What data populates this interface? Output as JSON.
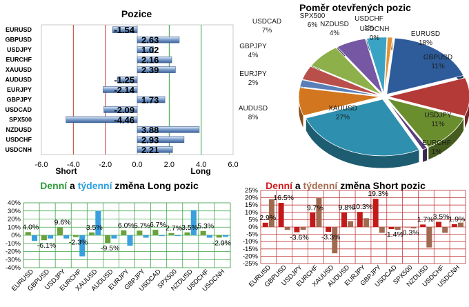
{
  "colors": {
    "bar_positive": "#6f93c4",
    "bar_negative": "#6f93c4",
    "grid_red": "#c0392b",
    "grid_green": "#2e9b3a",
    "long_daily": "#6aa23a",
    "long_weekly": "#3aa0dd",
    "short_daily": "#c21a1a",
    "short_weekly": "#a06a50"
  },
  "pozice": {
    "title": "Pozice",
    "xlabel_short": "Short",
    "xlabel_long": "Long",
    "chart_data": {
      "type": "bar",
      "orientation": "horizontal",
      "categories": [
        "EURUSD",
        "GBPUSD",
        "USDJPY",
        "EURCHF",
        "XAUUSD",
        "AUDUSD",
        "EURJPY",
        "GBPJPY",
        "USDCAD",
        "SPX500",
        "NZDUSD",
        "USDCHF",
        "USDCNH"
      ],
      "values": [
        -1.54,
        2.63,
        1.02,
        2.16,
        2.39,
        -1.25,
        -2.14,
        1.73,
        -2.09,
        -4.46,
        3.88,
        2.93,
        2.21
      ],
      "labels": [
        "-1.54",
        "2.63",
        "1.02",
        "2.16",
        "2.39",
        "-1.25",
        "-2.14",
        "1.73",
        "-2.09",
        "-4.46",
        "3.88",
        "2.93",
        "2.21"
      ],
      "xlim": [
        -6,
        6
      ],
      "ticks": [
        "-6.0",
        "-4.0",
        "-2.0",
        "0.0",
        "2.0",
        "4.0",
        "6.0"
      ]
    }
  },
  "pie": {
    "title": "Poměr  otevřených pozic",
    "chart_data": {
      "type": "pie",
      "slices": [
        {
          "name": "EURUSD",
          "value": 18,
          "label": "EURUSD\n18%",
          "color": "#2e5c9a"
        },
        {
          "name": "GBPUSD",
          "value": 11,
          "label": "GBPUSD\n11%",
          "color": "#b33a36"
        },
        {
          "name": "USDJPY",
          "value": 11,
          "label": "USDJPY\n11%",
          "color": "#6a8e2e"
        },
        {
          "name": "EURCHF",
          "value": 1,
          "label": "EURCHF\n1%",
          "color": "#5a3e7a"
        },
        {
          "name": "XAUUSD",
          "value": 27,
          "label": "XAUUSD\n27%",
          "color": "#2e8fae"
        },
        {
          "name": "AUDUSD",
          "value": 8,
          "label": "AUDUSD\n8%",
          "color": "#d2771f"
        },
        {
          "name": "EURJPY",
          "value": 2,
          "label": "EURJPY\n2%",
          "color": "#5a7fb8"
        },
        {
          "name": "GBPJPY",
          "value": 4,
          "label": "GBPJPY\n4%",
          "color": "#b84f4b"
        },
        {
          "name": "USDCAD",
          "value": 7,
          "label": "USDCAD\n7%",
          "color": "#8eb04a"
        },
        {
          "name": "SPX500",
          "value": 6,
          "label": "SPX500\n6%",
          "color": "#7657a3"
        },
        {
          "name": "NZDUSD",
          "value": 4,
          "label": "NZDUSD\n4%",
          "color": "#3aa3c4"
        },
        {
          "name": "USDCHF",
          "value": 1,
          "label": "USDCHF\n1%",
          "color": "#e39235"
        },
        {
          "name": "USDCNH",
          "value": 0,
          "label": "USDCNH\n0%",
          "color": "#8aa6d0"
        }
      ]
    }
  },
  "long": {
    "title_parts": [
      "Denní",
      " a ",
      "týdenní",
      " změna Long pozic"
    ],
    "chart_data": {
      "type": "bar",
      "categories": [
        "EURUSD",
        "GBPUSD",
        "USDJPY",
        "EURCHF",
        "XAUUSD",
        "AUDUSD",
        "EURJPY",
        "GBPJPY",
        "USDCAD",
        "SPX500",
        "NZDUSD",
        "USDCHF",
        "USDCNH"
      ],
      "series": [
        {
          "name": "Denní",
          "values": [
            4.0,
            -6.1,
            9.6,
            -2.3,
            3.5,
            -9.5,
            6.0,
            5.7,
            6.7,
            2.7,
            3.5,
            5.3,
            -2.9
          ]
        },
        {
          "name": "týdenní",
          "values": [
            -7,
            -4,
            -4,
            -26,
            30,
            -4,
            -13,
            -3,
            -1,
            -1,
            31,
            -3,
            -2
          ]
        }
      ],
      "labels": [
        "4.0%",
        "-6.1%",
        "9.6%",
        "-2.3%",
        "3.5%",
        "-9.5%",
        "6.0%",
        "5.7%",
        "6.7%",
        "2.7%",
        "3.5%",
        "5.3%",
        "-2.9%"
      ],
      "ylim": [
        -40,
        40
      ],
      "yticks": [
        "40%",
        "30%",
        "20%",
        "10%",
        "0%",
        "-10%",
        "-20%",
        "-30%",
        "-40%"
      ]
    }
  },
  "short": {
    "title_parts": [
      "Denní",
      " a ",
      "týdenní",
      " změna Short pozic"
    ],
    "chart_data": {
      "type": "bar",
      "categories": [
        "EURUSD",
        "GBPUSD",
        "USDJPY",
        "EURCHF",
        "XAUUSD",
        "AUDUSD",
        "EURJPY",
        "GBPJPY",
        "USDCAD",
        "SPX500",
        "NZDUSD",
        "USDCHF",
        "USDCNH"
      ],
      "series": [
        {
          "name": "Denní",
          "values": [
            2.9,
            16.5,
            -3.6,
            9.7,
            -3.3,
            9.8,
            10.3,
            19.3,
            -1.4,
            -0.3,
            1.7,
            3.5,
            1.9
          ]
        },
        {
          "name": "týdenní",
          "values": [
            19,
            -2,
            -2,
            20,
            -18,
            4,
            6,
            -4,
            -2,
            -1,
            -14,
            -4,
            3
          ]
        }
      ],
      "labels": [
        "2.9%",
        "16.5%",
        "-3.6%",
        "9.7%",
        "-3.3%",
        "9.8%",
        "10.3%",
        "19.3%",
        "-1.4%",
        "-0.3%",
        "1.7%",
        "3.5%",
        "1.9%"
      ],
      "ylim": [
        -25,
        25
      ],
      "yticks": [
        "25%",
        "20%",
        "15%",
        "10%",
        "5%",
        "0%",
        "-5%",
        "-10%",
        "-15%",
        "-20%",
        "-25%"
      ]
    }
  }
}
